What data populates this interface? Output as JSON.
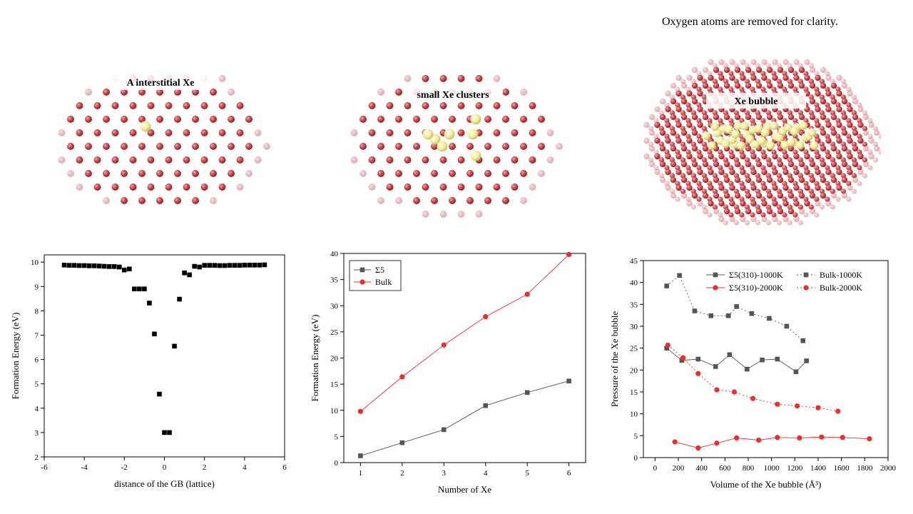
{
  "note": "Oxygen atoms are removed for clarity.",
  "panels": [
    {
      "label": "A interstitial  Xe",
      "xe_count": 1
    },
    {
      "label": "small Xe clusters",
      "xe_count": 7
    },
    {
      "label": "Xe bubble",
      "xe_count": 40
    }
  ],
  "colors": {
    "u_atom": "#c9464a",
    "xe_atom": "#f2ee9e",
    "black": "#000000",
    "gray_series": "#555555",
    "red_series": "#ef2b2b"
  },
  "chart_data": [
    {
      "type": "scatter",
      "title": "",
      "xlabel": "distance of the GB (lattice)",
      "ylabel": "Formation Energy (eV)",
      "xlim": [
        -6,
        6
      ],
      "ylim": [
        2,
        10.3
      ],
      "xticks": [
        -6,
        -4,
        -2,
        0,
        2,
        4,
        6
      ],
      "yticks": [
        2,
        3,
        4,
        5,
        6,
        7,
        8,
        9,
        10
      ],
      "series": [
        {
          "x": [
            -5.0,
            -4.75,
            -4.5,
            -4.25,
            -4.0,
            -3.75,
            -3.5,
            -3.25,
            -3.0,
            -2.75,
            -2.5,
            -2.25,
            -2.0,
            -1.75,
            -1.5,
            -1.25,
            -1.0,
            -0.75,
            -0.5,
            -0.25,
            0.0,
            0.25,
            0.5,
            0.75,
            1.0,
            1.25,
            1.5,
            1.75,
            2.0,
            2.25,
            2.5,
            2.75,
            3.0,
            3.25,
            3.5,
            3.75,
            4.0,
            4.25,
            4.5,
            4.75,
            5.0
          ],
          "y": [
            9.88,
            9.87,
            9.87,
            9.86,
            9.86,
            9.85,
            9.85,
            9.84,
            9.83,
            9.82,
            9.82,
            9.8,
            9.68,
            9.72,
            8.9,
            8.9,
            8.9,
            8.32,
            7.05,
            4.58,
            3.0,
            3.0,
            6.55,
            8.48,
            9.56,
            9.48,
            9.83,
            9.8,
            9.87,
            9.87,
            9.87,
            9.86,
            9.86,
            9.87,
            9.87,
            9.87,
            9.88,
            9.88,
            9.88,
            9.88,
            9.89
          ]
        }
      ]
    },
    {
      "type": "line",
      "title": "",
      "xlabel": "Number of Xe",
      "ylabel": "Formation Energy (eV)",
      "xlim": [
        0.6,
        6.4
      ],
      "ylim": [
        0,
        40
      ],
      "xticks": [
        1,
        2,
        3,
        4,
        5,
        6
      ],
      "yticks": [
        0,
        5,
        10,
        15,
        20,
        25,
        30,
        35,
        40
      ],
      "legend": "top-left",
      "series": [
        {
          "name": "Σ5",
          "color": "#555555",
          "marker": "square",
          "x": [
            1,
            2,
            3,
            4,
            5,
            6
          ],
          "y": [
            1.3,
            3.8,
            6.3,
            10.9,
            13.4,
            15.6
          ]
        },
        {
          "name": "Bulk",
          "color": "#ef2b2b",
          "marker": "circle",
          "x": [
            1,
            2,
            3,
            4,
            5,
            6
          ],
          "y": [
            9.8,
            16.4,
            22.5,
            27.9,
            32.2,
            39.8
          ]
        }
      ]
    },
    {
      "type": "line",
      "title": "",
      "xlabel": "Volume of the Xe bubble (Å³)",
      "ylabel": "Pressure of the Xe bubble",
      "xlim": [
        -100,
        2000
      ],
      "ylim": [
        0,
        45
      ],
      "xticks": [
        0,
        200,
        400,
        600,
        800,
        1000,
        1200,
        1400,
        1600,
        1800,
        2000
      ],
      "yticks": [
        0,
        5,
        10,
        15,
        20,
        25,
        30,
        35,
        40,
        45
      ],
      "legend": "top-right",
      "series": [
        {
          "name": "Σ5(310)-1000K",
          "color": "#555555",
          "marker": "square",
          "dash": "solid",
          "x": [
            100,
            230,
            370,
            520,
            640,
            790,
            920,
            1050,
            1210,
            1300
          ],
          "y": [
            25.0,
            22.2,
            22.5,
            20.8,
            23.5,
            20.2,
            22.3,
            22.5,
            19.6,
            22.1
          ]
        },
        {
          "name": "Σ5(310)-2000K",
          "color": "#ef2b2b",
          "marker": "circle",
          "dash": "solid",
          "x": [
            170,
            370,
            530,
            700,
            890,
            1050,
            1240,
            1430,
            1610,
            1840
          ],
          "y": [
            3.6,
            2.2,
            3.3,
            4.5,
            4.0,
            4.6,
            4.5,
            4.7,
            4.6,
            4.3
          ]
        },
        {
          "name": "Bulk-1000K",
          "color": "#555555",
          "marker": "square",
          "dash": "dotted",
          "x": [
            100,
            210,
            340,
            480,
            630,
            700,
            830,
            980,
            1130,
            1270
          ],
          "y": [
            39.2,
            41.6,
            33.5,
            32.4,
            32.4,
            34.5,
            32.9,
            31.8,
            30.0,
            26.7
          ]
        },
        {
          "name": "Bulk-2000K",
          "color": "#ef2b2b",
          "marker": "circle",
          "dash": "dotted",
          "x": [
            110,
            240,
            370,
            530,
            680,
            840,
            1050,
            1220,
            1400,
            1570
          ],
          "y": [
            25.7,
            22.8,
            19.2,
            15.5,
            15.0,
            13.5,
            12.2,
            11.8,
            11.4,
            10.6
          ]
        }
      ]
    }
  ]
}
